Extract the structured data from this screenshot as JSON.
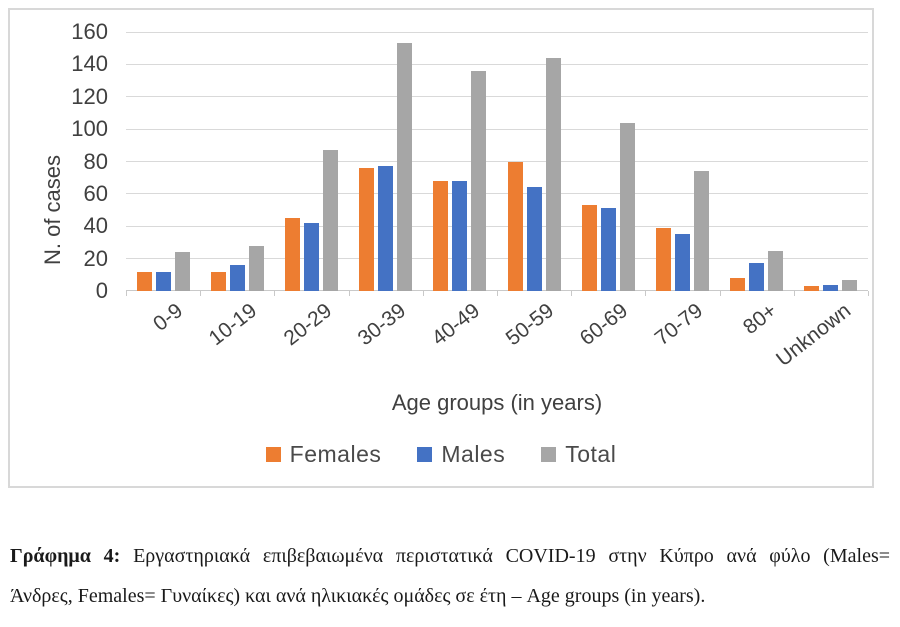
{
  "chart_data": {
    "type": "bar",
    "title": "",
    "categories": [
      "0-9",
      "10-19",
      "20-29",
      "30-39",
      "40-49",
      "50-59",
      "60-69",
      "70-79",
      "80+",
      "Unknown"
    ],
    "series": [
      {
        "name": "Females",
        "color": "#ED7D31",
        "values": [
          12,
          12,
          45,
          76,
          68,
          80,
          53,
          39,
          8,
          3
        ]
      },
      {
        "name": "Males",
        "color": "#4472C4",
        "values": [
          12,
          16,
          42,
          77,
          68,
          64,
          51,
          35,
          17,
          4
        ]
      },
      {
        "name": "Total",
        "color": "#A6A6A6",
        "values": [
          24,
          28,
          87,
          153,
          136,
          144,
          104,
          74,
          25,
          7
        ]
      }
    ],
    "xlabel": "Age groups (in years)",
    "ylabel": "N. of cases",
    "ylim": [
      0,
      160
    ],
    "yticks": [
      0,
      20,
      40,
      60,
      80,
      100,
      120,
      140,
      160
    ],
    "grid": true,
    "legend_position": "bottom"
  },
  "colors": {
    "gridline": "#d9d9d9",
    "axis_text": "#404040",
    "figure_border": "#d8d8d8"
  },
  "caption": {
    "label": "Γράφημα 4:",
    "line1_rest": " Εργαστηριακά επιβεβαιωμένα περιστατικά COVID-19 στην Κύπρο ανά φύλο (Males=",
    "line2": "Άνδρες, Females= Γυναίκες) και ανά ηλικιακές ομάδες σε έτη – Age groups (in years)."
  }
}
